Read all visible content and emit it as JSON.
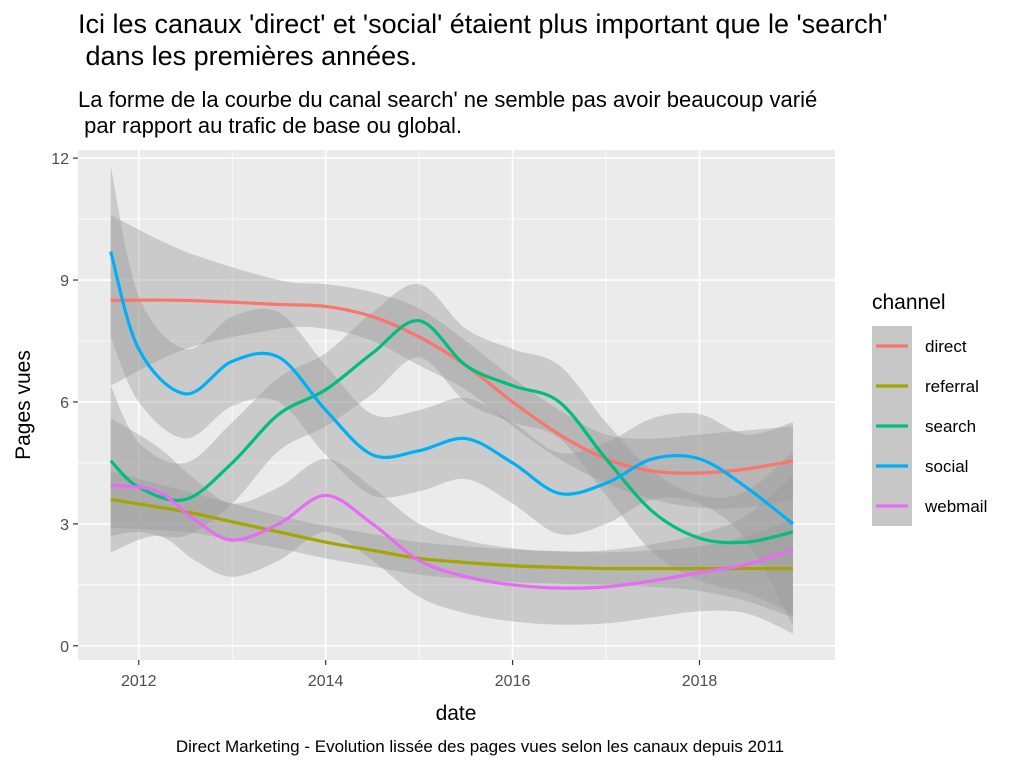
{
  "title": "Ici les canaux 'direct' et 'social' étaient plus important que le 'search'\n dans les premières années.",
  "subtitle": "La forme de la courbe du canal search' ne semble pas avoir beaucoup varié\n par rapport au trafic de base ou global.",
  "caption": "Direct Marketing - Evolution lissée des pages vues selon les canaux depuis 2011",
  "chart_data": {
    "type": "line",
    "xlabel": "date",
    "ylabel": "Pages vues",
    "xlim": [
      2011.35,
      2019.45
    ],
    "ylim": [
      -0.35,
      12.2
    ],
    "x_ticks": [
      2012,
      2014,
      2016,
      2018
    ],
    "y_ticks": [
      0,
      3,
      6,
      9,
      12
    ],
    "grid": true,
    "legend_title": "channel",
    "legend_position": "right",
    "series": [
      {
        "name": "direct",
        "color": "#F8766D",
        "x": [
          2011.7,
          2012.5,
          2013.5,
          2014.0,
          2014.5,
          2015.0,
          2015.5,
          2016.0,
          2016.5,
          2017.0,
          2017.5,
          2018.0,
          2018.5,
          2019.0
        ],
        "y": [
          8.5,
          8.5,
          8.4,
          8.35,
          8.1,
          7.6,
          6.9,
          6.0,
          5.2,
          4.6,
          4.3,
          4.25,
          4.35,
          4.55
        ],
        "band_upper": [
          10.6,
          9.7,
          9.0,
          8.9,
          8.7,
          8.3,
          7.5,
          6.6,
          5.8,
          5.2,
          5.1,
          5.2,
          5.3,
          5.4
        ],
        "band_lower": [
          6.4,
          7.3,
          7.8,
          7.8,
          7.5,
          6.9,
          6.3,
          5.4,
          4.6,
          4.0,
          3.6,
          3.4,
          3.4,
          3.6
        ]
      },
      {
        "name": "referral",
        "color": "#A3A500",
        "x": [
          2011.7,
          2012.5,
          2013.0,
          2013.5,
          2014.0,
          2014.5,
          2015.0,
          2015.5,
          2016.0,
          2016.5,
          2017.0,
          2017.5,
          2018.0,
          2018.5,
          2019.0
        ],
        "y": [
          3.6,
          3.3,
          3.05,
          2.8,
          2.55,
          2.35,
          2.15,
          2.05,
          1.97,
          1.93,
          1.9,
          1.9,
          1.9,
          1.9,
          1.9
        ],
        "band_upper": [
          4.3,
          3.8,
          3.5,
          3.2,
          2.95,
          2.75,
          2.55,
          2.45,
          2.37,
          2.33,
          2.3,
          2.35,
          2.45,
          2.7,
          3.1
        ],
        "band_lower": [
          2.9,
          2.8,
          2.6,
          2.4,
          2.15,
          1.95,
          1.75,
          1.65,
          1.57,
          1.53,
          1.5,
          1.45,
          1.35,
          1.1,
          0.7
        ]
      },
      {
        "name": "search",
        "color": "#00BF7D",
        "x": [
          2011.7,
          2012.0,
          2012.5,
          2013.0,
          2013.5,
          2014.0,
          2014.5,
          2015.0,
          2015.5,
          2016.0,
          2016.5,
          2017.0,
          2017.5,
          2018.0,
          2018.5,
          2019.0
        ],
        "y": [
          4.55,
          3.9,
          3.6,
          4.5,
          5.7,
          6.3,
          7.2,
          8.0,
          6.9,
          6.4,
          6.0,
          4.6,
          3.3,
          2.65,
          2.55,
          2.8
        ],
        "band_upper": [
          6.4,
          5.0,
          4.5,
          5.5,
          6.6,
          7.2,
          8.2,
          8.9,
          7.8,
          7.3,
          6.9,
          5.5,
          4.3,
          3.7,
          3.8,
          4.8
        ],
        "band_lower": [
          2.7,
          2.8,
          2.7,
          3.5,
          4.8,
          5.4,
          6.2,
          7.1,
          6.0,
          5.5,
          5.1,
          3.7,
          2.3,
          1.6,
          1.3,
          0.8
        ]
      },
      {
        "name": "social",
        "color": "#00B0F6",
        "x": [
          2011.7,
          2012.0,
          2012.5,
          2013.0,
          2013.5,
          2014.0,
          2014.5,
          2015.0,
          2015.5,
          2016.0,
          2016.5,
          2017.0,
          2017.5,
          2018.0,
          2018.5,
          2019.0
        ],
        "y": [
          9.7,
          7.3,
          6.2,
          7.0,
          7.1,
          5.8,
          4.7,
          4.8,
          5.1,
          4.5,
          3.75,
          4.0,
          4.6,
          4.6,
          3.9,
          3.0
        ],
        "band_upper": [
          11.8,
          8.6,
          7.3,
          8.1,
          8.2,
          6.9,
          5.7,
          5.8,
          6.1,
          5.5,
          4.75,
          5.0,
          5.6,
          5.7,
          5.2,
          5.5
        ],
        "band_lower": [
          7.6,
          6.0,
          5.1,
          5.9,
          6.0,
          4.7,
          3.7,
          3.8,
          4.1,
          3.5,
          2.75,
          3.0,
          3.6,
          3.5,
          2.6,
          0.5
        ]
      },
      {
        "name": "webmail",
        "color": "#E76BF3",
        "x": [
          2011.7,
          2012.2,
          2012.6,
          2013.0,
          2013.5,
          2014.0,
          2014.5,
          2015.0,
          2015.5,
          2016.0,
          2016.5,
          2017.0,
          2017.5,
          2018.0,
          2018.5,
          2019.0
        ],
        "y": [
          3.95,
          3.8,
          3.1,
          2.6,
          3.0,
          3.7,
          3.0,
          2.1,
          1.7,
          1.5,
          1.42,
          1.45,
          1.6,
          1.8,
          2.0,
          2.35
        ],
        "band_upper": [
          5.6,
          4.9,
          4.1,
          3.5,
          3.9,
          4.6,
          3.9,
          3.0,
          2.6,
          2.4,
          2.32,
          2.35,
          2.5,
          2.75,
          3.2,
          4.2
        ],
        "band_lower": [
          2.3,
          2.7,
          2.1,
          1.7,
          2.1,
          2.8,
          2.1,
          1.2,
          0.8,
          0.6,
          0.52,
          0.55,
          0.7,
          0.85,
          0.8,
          0.3
        ]
      }
    ]
  }
}
